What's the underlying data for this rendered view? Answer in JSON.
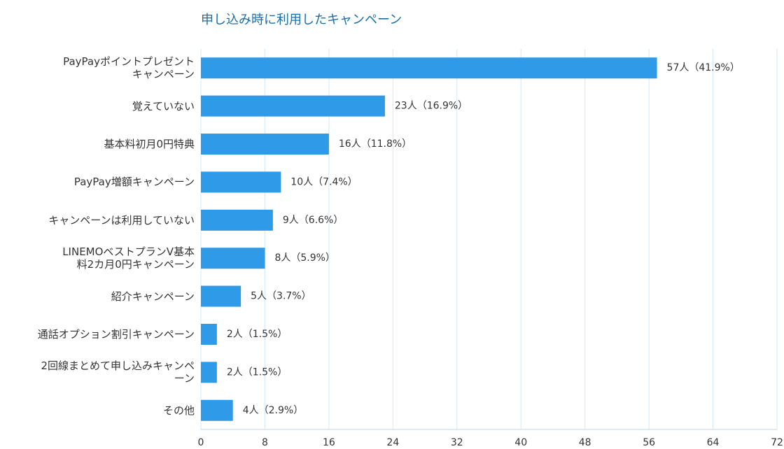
{
  "chart_data": {
    "type": "bar",
    "orientation": "horizontal",
    "title": "申し込み時に利用したキャンペーン",
    "categories": [
      "PayPayポイントプレゼント\nキャンペーン",
      "覚えていない",
      "基本料初月0円特典",
      "PayPay増額キャンペーン",
      "キャンペーンは利用していない",
      "LINEMOベストプランV基本\n料2カ月0円キャンペーン",
      "紹介キャンペーン",
      "通話オプション割引キャンペーン",
      "2回線まとめて申し込みキャンペ\nーン",
      "その他"
    ],
    "values": [
      57,
      23,
      16,
      10,
      9,
      8,
      5,
      2,
      2,
      4
    ],
    "value_labels": [
      "57人（41.9%）",
      "23人（16.9%）",
      "16人（11.8%）",
      "10人（7.4%）",
      "9人（6.6%）",
      "8人（5.9%）",
      "5人（3.7%）",
      "2人（1.5%）",
      "2人（1.5%）",
      "4人（2.9%）"
    ],
    "color": "#2f9be8",
    "xlim": [
      0,
      72
    ],
    "xticks": [
      0,
      8,
      16,
      24,
      32,
      40,
      48,
      56,
      64,
      72
    ],
    "grid": true
  }
}
